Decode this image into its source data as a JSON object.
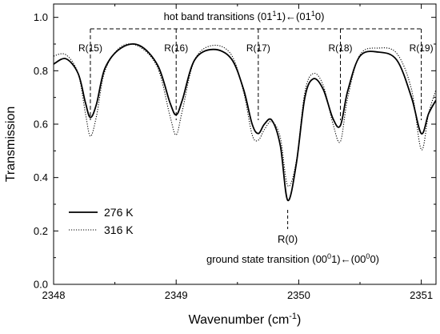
{
  "chart_data": {
    "type": "line",
    "xlabel": "Wavenumber (cm",
    "xlabel_sup": "-1",
    "xlabel_tail": ")",
    "ylabel": "Transmission",
    "xlim": [
      2348.0,
      2351.12
    ],
    "ylim": [
      0.0,
      1.05
    ],
    "x_ticks": [
      2348,
      2349,
      2350,
      2351
    ],
    "x_tick_labels": [
      "2348",
      "2349",
      "2350",
      "2351"
    ],
    "y_ticks": [
      0.0,
      0.2,
      0.4,
      0.6,
      0.8,
      1.0
    ],
    "y_tick_labels": [
      "0.0",
      "0.2",
      "0.4",
      "0.6",
      "0.8",
      "1.0"
    ],
    "legend_position": "bottom-left",
    "series": [
      {
        "name": "276 K",
        "style": "solid",
        "x": [
          2348.0,
          2348.1,
          2348.2,
          2348.26,
          2348.3,
          2348.35,
          2348.42,
          2348.55,
          2348.7,
          2348.85,
          2348.95,
          2349.0,
          2349.05,
          2349.15,
          2349.3,
          2349.45,
          2349.55,
          2349.62,
          2349.67,
          2349.72,
          2349.78,
          2349.85,
          2349.91,
          2349.98,
          2350.05,
          2350.12,
          2350.2,
          2350.28,
          2350.34,
          2350.4,
          2350.5,
          2350.65,
          2350.8,
          2350.92,
          2351.0,
          2351.06,
          2351.12
        ],
        "y": [
          0.825,
          0.845,
          0.79,
          0.68,
          0.625,
          0.675,
          0.81,
          0.885,
          0.895,
          0.82,
          0.68,
          0.635,
          0.69,
          0.84,
          0.88,
          0.845,
          0.73,
          0.6,
          0.565,
          0.6,
          0.615,
          0.52,
          0.315,
          0.45,
          0.7,
          0.77,
          0.73,
          0.62,
          0.595,
          0.725,
          0.855,
          0.87,
          0.84,
          0.7,
          0.565,
          0.64,
          0.69
        ]
      },
      {
        "name": "316 K",
        "style": "dotted",
        "x": [
          2348.0,
          2348.1,
          2348.2,
          2348.26,
          2348.3,
          2348.35,
          2348.42,
          2348.55,
          2348.7,
          2348.85,
          2348.95,
          2349.0,
          2349.05,
          2349.15,
          2349.3,
          2349.45,
          2349.55,
          2349.62,
          2349.67,
          2349.72,
          2349.78,
          2349.85,
          2349.91,
          2349.98,
          2350.05,
          2350.12,
          2350.2,
          2350.28,
          2350.34,
          2350.4,
          2350.5,
          2350.65,
          2350.8,
          2350.92,
          2351.0,
          2351.06,
          2351.12
        ],
        "y": [
          0.855,
          0.86,
          0.79,
          0.64,
          0.555,
          0.63,
          0.8,
          0.89,
          0.89,
          0.81,
          0.63,
          0.56,
          0.65,
          0.84,
          0.895,
          0.86,
          0.72,
          0.56,
          0.54,
          0.58,
          0.61,
          0.55,
          0.37,
          0.46,
          0.72,
          0.79,
          0.745,
          0.6,
          0.535,
          0.7,
          0.86,
          0.885,
          0.865,
          0.73,
          0.505,
          0.64,
          0.73
        ]
      }
    ],
    "annotations": {
      "hot_band_label": "hot band transitions (01",
      "hot_band_sup1": "1",
      "hot_band_mid": "1)←(01",
      "hot_band_sup2": "1",
      "hot_band_tail": "0)",
      "hot_band_lines": [
        {
          "label": "R(15)",
          "x": 2348.3
        },
        {
          "label": "R(16)",
          "x": 2349.0
        },
        {
          "label": "R(17)",
          "x": 2349.67
        },
        {
          "label": "R(18)",
          "x": 2350.34
        },
        {
          "label": "R(19)",
          "x": 2351.0
        }
      ],
      "ground_label": "R(0)",
      "ground_x": 2349.91,
      "ground_state_label": "ground state transition (00",
      "ground_sup1": "0",
      "ground_mid": "1)←(00",
      "ground_sup2": "0",
      "ground_tail": "0)"
    }
  }
}
